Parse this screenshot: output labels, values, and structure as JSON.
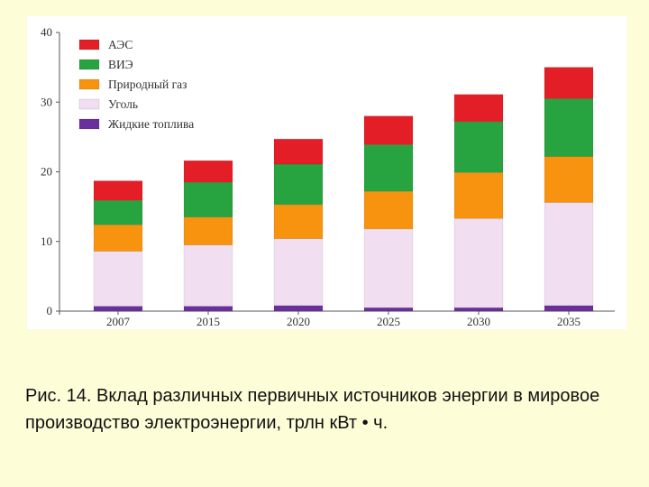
{
  "chart_data": {
    "type": "bar",
    "stacked": true,
    "categories": [
      "2007",
      "2015",
      "2020",
      "2025",
      "2030",
      "2035"
    ],
    "series": [
      {
        "name": "Жидкие топлива",
        "color": "#6a2f9e",
        "values": [
          0.7,
          0.7,
          0.8,
          0.5,
          0.5,
          0.8
        ]
      },
      {
        "name": "Уголь",
        "color": "#f1def0",
        "values": [
          7.9,
          8.8,
          9.6,
          11.3,
          12.8,
          14.8
        ]
      },
      {
        "name": "Природный газ",
        "color": "#f7930f",
        "values": [
          3.8,
          4.0,
          4.9,
          5.4,
          6.6,
          6.6
        ]
      },
      {
        "name": "ВИЭ",
        "color": "#27a340",
        "values": [
          3.5,
          5.0,
          5.8,
          6.7,
          7.3,
          8.3
        ]
      },
      {
        "name": "АЭС",
        "color": "#e41e26",
        "values": [
          2.8,
          3.1,
          3.6,
          4.1,
          3.9,
          4.5
        ]
      }
    ],
    "legend_order": [
      "АЭС",
      "ВИЭ",
      "Природный газ",
      "Уголь",
      "Жидкие топлива"
    ],
    "y_ticks": [
      0,
      10,
      20,
      30,
      40
    ],
    "ylim": [
      0,
      40
    ],
    "grid": false,
    "legend_position": "top-left",
    "title": "",
    "xlabel": "",
    "ylabel": ""
  },
  "caption": "Рис. 14. Вклад различных первичных источников энергии в мировое производство электроэнергии, трлн кВт • ч."
}
